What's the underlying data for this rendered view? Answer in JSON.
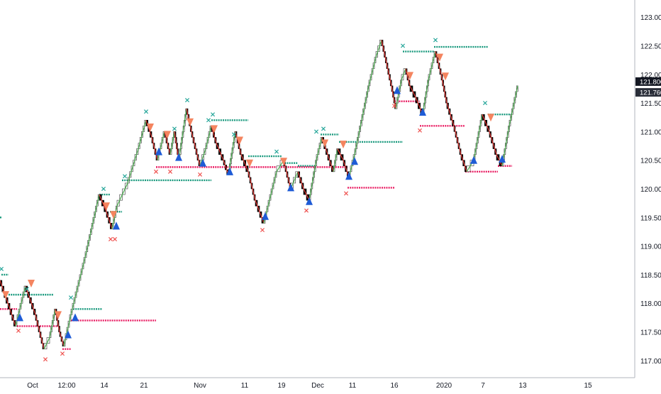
{
  "chart_data": {
    "type": "line",
    "style": "renko bricks with support/resistance levels and pivot markers",
    "y_axis": {
      "ticks": [
        "123.000",
        "122.500",
        "122.000",
        "121.500",
        "121.000",
        "120.500",
        "120.000",
        "119.500",
        "119.000",
        "118.500",
        "118.000",
        "117.500",
        "117.000"
      ],
      "range": [
        116.7,
        123.3
      ],
      "position": "right",
      "grid": false
    },
    "x_axis": {
      "ticks": [
        "Oct",
        "12:00",
        "14",
        "21",
        "Nov",
        "11",
        "19",
        "Dec",
        "11",
        "16",
        "2020",
        "7",
        "13",
        "15"
      ],
      "grid": false
    },
    "price_labels": [
      {
        "text": "121.800",
        "value": 121.8
      },
      {
        "text": "121.760",
        "value": 121.76
      }
    ],
    "price_path": [
      [
        0,
        118.4
      ],
      [
        14,
        117.9
      ],
      [
        22,
        117.6
      ],
      [
        36,
        118.3
      ],
      [
        50,
        117.8
      ],
      [
        62,
        117.2
      ],
      [
        70,
        117.4
      ],
      [
        78,
        117.9
      ],
      [
        84,
        117.5
      ],
      [
        90,
        117.25
      ],
      [
        100,
        117.8
      ],
      [
        120,
        118.8
      ],
      [
        140,
        119.9
      ],
      [
        150,
        119.6
      ],
      [
        158,
        119.3
      ],
      [
        165,
        119.7
      ],
      [
        180,
        120.1
      ],
      [
        195,
        120.7
      ],
      [
        206,
        121.2
      ],
      [
        214,
        120.9
      ],
      [
        222,
        120.5
      ],
      [
        232,
        121.0
      ],
      [
        240,
        120.6
      ],
      [
        246,
        121.0
      ],
      [
        252,
        120.5
      ],
      [
        263,
        121.4
      ],
      [
        270,
        121.0
      ],
      [
        282,
        120.4
      ],
      [
        290,
        120.7
      ],
      [
        298,
        121.1
      ],
      [
        305,
        120.8
      ],
      [
        315,
        120.5
      ],
      [
        322,
        120.25
      ],
      [
        332,
        121.0
      ],
      [
        340,
        120.6
      ],
      [
        350,
        120.3
      ],
      [
        360,
        119.8
      ],
      [
        372,
        119.4
      ],
      [
        380,
        119.8
      ],
      [
        390,
        120.3
      ],
      [
        400,
        120.5
      ],
      [
        410,
        120.0
      ],
      [
        420,
        120.3
      ],
      [
        428,
        120.0
      ],
      [
        436,
        119.8
      ],
      [
        446,
        120.5
      ],
      [
        454,
        120.9
      ],
      [
        462,
        120.6
      ],
      [
        470,
        120.3
      ],
      [
        476,
        120.7
      ],
      [
        484,
        120.5
      ],
      [
        492,
        120.2
      ],
      [
        500,
        120.6
      ],
      [
        510,
        121.2
      ],
      [
        520,
        121.8
      ],
      [
        530,
        122.3
      ],
      [
        538,
        122.6
      ],
      [
        545,
        122.2
      ],
      [
        552,
        121.8
      ],
      [
        558,
        121.4
      ],
      [
        566,
        121.9
      ],
      [
        572,
        122.1
      ],
      [
        578,
        121.8
      ],
      [
        586,
        121.6
      ],
      [
        596,
        121.3
      ],
      [
        604,
        121.9
      ],
      [
        614,
        122.4
      ],
      [
        622,
        122.0
      ],
      [
        630,
        121.5
      ],
      [
        640,
        121.1
      ],
      [
        650,
        120.6
      ],
      [
        658,
        120.3
      ],
      [
        668,
        120.5
      ],
      [
        680,
        121.3
      ],
      [
        690,
        121.0
      ],
      [
        700,
        120.6
      ],
      [
        708,
        120.4
      ],
      [
        718,
        121.1
      ],
      [
        730,
        121.8
      ]
    ],
    "levels": [
      {
        "type": "resistance",
        "x1": 0,
        "x2": 2,
        "value": 119.5
      },
      {
        "type": "resistance",
        "x1": 2,
        "x2": 12,
        "value": 118.5
      },
      {
        "type": "resistance",
        "x1": 12,
        "x2": 75,
        "value": 118.15
      },
      {
        "type": "resistance",
        "x1": 103,
        "x2": 144,
        "value": 117.9
      },
      {
        "type": "resistance",
        "x1": 140,
        "x2": 156,
        "value": 119.9
      },
      {
        "type": "resistance",
        "x1": 155,
        "x2": 172,
        "value": 119.6
      },
      {
        "type": "resistance",
        "x1": 172,
        "x2": 298,
        "value": 120.15
      },
      {
        "type": "resistance",
        "x1": 298,
        "x2": 350,
        "value": 121.2
      },
      {
        "type": "resistance",
        "x1": 350,
        "x2": 398,
        "value": 120.57
      },
      {
        "type": "resistance",
        "x1": 398,
        "x2": 420,
        "value": 120.45
      },
      {
        "type": "resistance",
        "x1": 420,
        "x2": 445,
        "value": 120.4
      },
      {
        "type": "resistance",
        "x1": 452,
        "x2": 478,
        "value": 120.95
      },
      {
        "type": "resistance",
        "x1": 478,
        "x2": 568,
        "value": 120.82
      },
      {
        "type": "resistance",
        "x1": 568,
        "x2": 612,
        "value": 122.4
      },
      {
        "type": "resistance",
        "x1": 612,
        "x2": 688,
        "value": 122.48
      },
      {
        "type": "resistance",
        "x1": 688,
        "x2": 722,
        "value": 121.3
      },
      {
        "type": "support",
        "x1": 0,
        "x2": 24,
        "value": 117.9
      },
      {
        "type": "support",
        "x1": 24,
        "x2": 82,
        "value": 117.6
      },
      {
        "type": "support",
        "x1": 88,
        "x2": 100,
        "value": 117.2
      },
      {
        "type": "support",
        "x1": 100,
        "x2": 220,
        "value": 117.7
      },
      {
        "type": "support",
        "x1": 220,
        "x2": 490,
        "value": 120.38
      },
      {
        "type": "support",
        "x1": 490,
        "x2": 556,
        "value": 120.02
      },
      {
        "type": "support",
        "x1": 556,
        "x2": 592,
        "value": 121.53
      },
      {
        "type": "support",
        "x1": 592,
        "x2": 656,
        "value": 121.1
      },
      {
        "type": "support",
        "x1": 656,
        "x2": 702,
        "value": 120.3
      },
      {
        "type": "support",
        "x1": 702,
        "x2": 722,
        "value": 120.4
      }
    ],
    "markers_up": [
      [
        28,
        117.75
      ],
      [
        96,
        117.45
      ],
      [
        106,
        117.75
      ],
      [
        164,
        119.35
      ],
      [
        224,
        120.65
      ],
      [
        252,
        120.55
      ],
      [
        286,
        120.45
      ],
      [
        324,
        120.3
      ],
      [
        374,
        119.52
      ],
      [
        410,
        120.02
      ],
      [
        436,
        119.78
      ],
      [
        492,
        120.22
      ],
      [
        500,
        120.48
      ],
      [
        560,
        121.72
      ],
      [
        596,
        121.34
      ],
      [
        668,
        120.5
      ],
      [
        708,
        120.52
      ]
    ],
    "markers_down": [
      [
        8,
        118.15
      ],
      [
        44,
        118.35
      ],
      [
        82,
        117.8
      ],
      [
        150,
        119.7
      ],
      [
        160,
        119.55
      ],
      [
        212,
        121.08
      ],
      [
        236,
        120.95
      ],
      [
        268,
        121.17
      ],
      [
        302,
        121.05
      ],
      [
        338,
        120.85
      ],
      [
        352,
        120.45
      ],
      [
        400,
        120.48
      ],
      [
        458,
        120.8
      ],
      [
        484,
        120.78
      ],
      [
        578,
        121.98
      ],
      [
        620,
        122.3
      ],
      [
        628,
        121.97
      ],
      [
        692,
        121.25
      ]
    ],
    "x_marks_top": [
      [
        2,
        118.6
      ],
      [
        38,
        118.25
      ],
      [
        100,
        118.1
      ],
      [
        146,
        120.0
      ],
      [
        176,
        120.22
      ],
      [
        206,
        121.35
      ],
      [
        246,
        121.05
      ],
      [
        264,
        121.55
      ],
      [
        294,
        121.2
      ],
      [
        300,
        121.3
      ],
      [
        330,
        120.95
      ],
      [
        390,
        120.65
      ],
      [
        446,
        121.0
      ],
      [
        456,
        121.05
      ],
      [
        568,
        122.5
      ],
      [
        614,
        122.6
      ],
      [
        684,
        121.5
      ]
    ],
    "x_marks_bottom": [
      [
        26,
        117.52
      ],
      [
        64,
        117.02
      ],
      [
        88,
        117.12
      ],
      [
        156,
        119.12
      ],
      [
        162,
        119.12
      ],
      [
        220,
        120.3
      ],
      [
        240,
        120.3
      ],
      [
        282,
        120.25
      ],
      [
        370,
        119.28
      ],
      [
        432,
        119.62
      ],
      [
        488,
        119.92
      ],
      [
        556,
        121.45
      ],
      [
        592,
        121.02
      ]
    ]
  }
}
